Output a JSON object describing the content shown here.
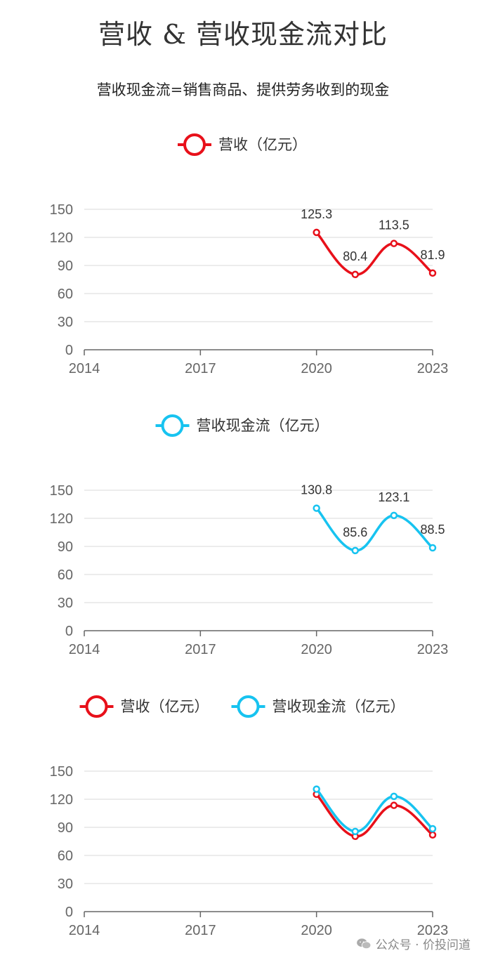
{
  "title": "营收 & 营收现金流对比",
  "subtitle": "营收现金流=销售商品、提供劳务收到的现金",
  "watermark": "公众号 · 价投问道",
  "colors": {
    "revenue": "#e8101a",
    "cashflow": "#17c3f0",
    "grid": "#e6e6e6",
    "axis": "#666666"
  },
  "chart_data": [
    {
      "type": "line",
      "title": "营收 & 营收现金流对比",
      "x": [
        2014,
        2015,
        2016,
        2017,
        2018,
        2019,
        2020,
        2021,
        2022,
        2023
      ],
      "xticks": [
        "2014",
        "2017",
        "2020",
        "2023"
      ],
      "yticks": [
        "0",
        "30",
        "60",
        "90",
        "120",
        "150"
      ],
      "ylim": [
        0,
        150
      ],
      "xlim": [
        2014,
        2023
      ],
      "show_labels": true,
      "series": [
        {
          "name": "营收（亿元）",
          "color_key": "revenue",
          "points": [
            [
              2020,
              125.3
            ],
            [
              2021,
              80.4
            ],
            [
              2022,
              113.5
            ],
            [
              2023,
              81.9
            ]
          ],
          "labels": [
            "125.3",
            "80.4",
            "113.5",
            "81.9"
          ]
        }
      ]
    },
    {
      "type": "line",
      "x": [
        2014,
        2015,
        2016,
        2017,
        2018,
        2019,
        2020,
        2021,
        2022,
        2023
      ],
      "xticks": [
        "2014",
        "2017",
        "2020",
        "2023"
      ],
      "yticks": [
        "0",
        "30",
        "60",
        "90",
        "120",
        "150"
      ],
      "ylim": [
        0,
        150
      ],
      "xlim": [
        2014,
        2023
      ],
      "show_labels": true,
      "series": [
        {
          "name": "营收现金流（亿元）",
          "color_key": "cashflow",
          "points": [
            [
              2020,
              130.8
            ],
            [
              2021,
              85.6
            ],
            [
              2022,
              123.1
            ],
            [
              2023,
              88.5
            ]
          ],
          "labels": [
            "130.8",
            "85.6",
            "123.1",
            "88.5"
          ]
        }
      ]
    },
    {
      "type": "line",
      "x": [
        2014,
        2015,
        2016,
        2017,
        2018,
        2019,
        2020,
        2021,
        2022,
        2023
      ],
      "xticks": [
        "2014",
        "2017",
        "2020",
        "2023"
      ],
      "yticks": [
        "0",
        "30",
        "60",
        "90",
        "120",
        "150"
      ],
      "ylim": [
        0,
        150
      ],
      "xlim": [
        2014,
        2023
      ],
      "show_labels": false,
      "series": [
        {
          "name": "营收（亿元）",
          "color_key": "revenue",
          "points": [
            [
              2020,
              125.3
            ],
            [
              2021,
              80.4
            ],
            [
              2022,
              113.5
            ],
            [
              2023,
              81.9
            ]
          ]
        },
        {
          "name": "营收现金流（亿元）",
          "color_key": "cashflow",
          "points": [
            [
              2020,
              130.8
            ],
            [
              2021,
              85.6
            ],
            [
              2022,
              123.1
            ],
            [
              2023,
              88.5
            ]
          ]
        }
      ]
    }
  ]
}
